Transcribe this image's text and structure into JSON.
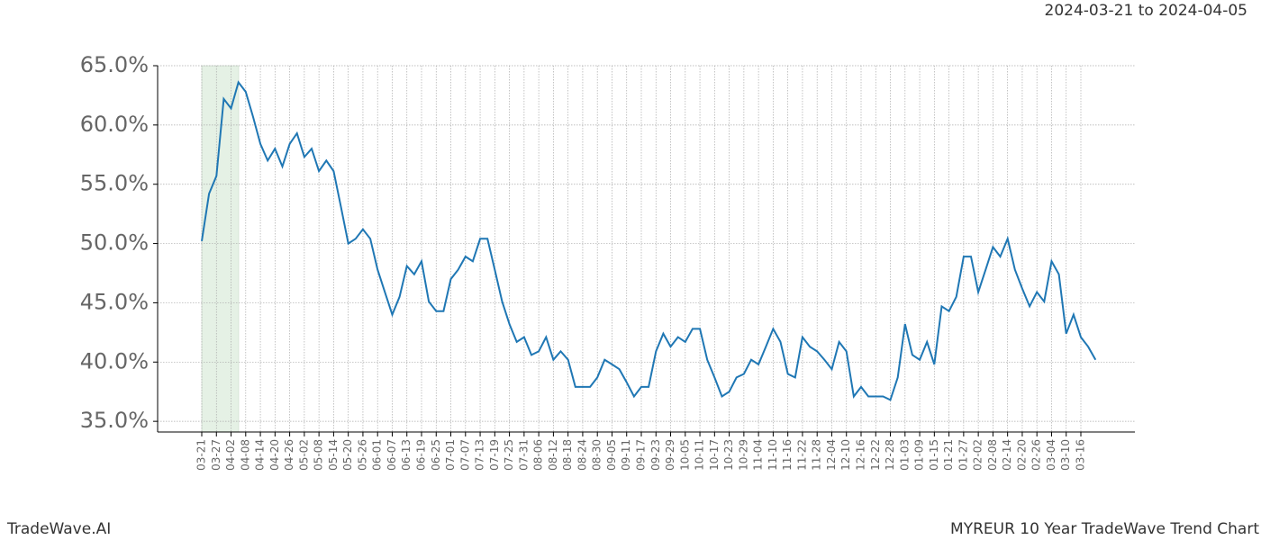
{
  "chart_data": {
    "type": "line",
    "subtitle": "2024-03-21 to 2024-04-05",
    "brand": "TradeWave.AI",
    "title": "MYREUR 10 Year TradeWave Trend Chart",
    "categories": [
      "03-21",
      null,
      "03-27",
      null,
      "04-02",
      null,
      "04-08",
      null,
      "04-14",
      null,
      "04-20",
      null,
      "04-26",
      null,
      "05-02",
      null,
      "05-08",
      null,
      "05-14",
      null,
      "05-20",
      null,
      "05-26",
      null,
      "06-01",
      null,
      "06-07",
      null,
      "06-13",
      null,
      "06-19",
      null,
      "06-25",
      null,
      "07-01",
      null,
      "07-07",
      null,
      "07-13",
      null,
      "07-19",
      null,
      "07-25",
      null,
      "07-31",
      null,
      "08-06",
      null,
      "08-12",
      null,
      "08-18",
      null,
      "08-24",
      null,
      "08-30",
      null,
      "09-05",
      null,
      "09-11",
      null,
      "09-17",
      null,
      "09-23",
      null,
      "09-29",
      null,
      "10-05",
      null,
      "10-11",
      null,
      "10-17",
      null,
      "10-23",
      null,
      "10-29",
      null,
      "11-04",
      null,
      "11-10",
      null,
      "11-16",
      null,
      "11-22",
      null,
      "11-28",
      null,
      "12-04",
      null,
      "12-10",
      null,
      "12-16",
      null,
      "12-22",
      null,
      "12-28",
      null,
      "01-03",
      null,
      "01-09",
      null,
      "01-15",
      null,
      "01-21",
      null,
      "01-27",
      null,
      "02-02",
      null,
      "02-08",
      null,
      "02-14",
      null,
      "02-20",
      null,
      "02-26",
      null,
      "03-04",
      null,
      "03-10",
      null,
      "03-16",
      null,
      null
    ],
    "values": [
      50.2,
      54.2,
      55.7,
      62.2,
      61.4,
      63.6,
      62.8,
      60.7,
      58.4,
      57.0,
      58.0,
      56.5,
      58.4,
      59.3,
      57.3,
      58.0,
      56.1,
      57.0,
      56.1,
      53.1,
      50.0,
      50.4,
      51.2,
      50.4,
      47.8,
      45.9,
      44.0,
      45.5,
      48.1,
      47.4,
      48.5,
      45.1,
      44.3,
      44.3,
      47.0,
      47.8,
      48.9,
      48.5,
      50.4,
      50.4,
      47.8,
      45.1,
      43.2,
      41.7,
      42.1,
      40.6,
      40.9,
      42.1,
      40.2,
      40.9,
      40.2,
      37.9,
      37.9,
      37.9,
      38.7,
      40.2,
      39.8,
      39.4,
      38.3,
      37.1,
      37.9,
      37.9,
      40.9,
      42.4,
      41.3,
      42.1,
      41.7,
      42.8,
      42.8,
      40.2,
      38.7,
      37.1,
      37.5,
      38.7,
      39.0,
      40.2,
      39.8,
      41.3,
      42.8,
      41.7,
      39.0,
      38.7,
      42.1,
      41.3,
      40.9,
      40.2,
      39.4,
      41.7,
      40.9,
      37.1,
      37.9,
      37.1,
      37.1,
      37.1,
      36.8,
      38.7,
      43.2,
      40.6,
      40.2,
      41.7,
      39.8,
      44.7,
      44.3,
      45.5,
      48.9,
      48.9,
      45.9,
      47.8,
      49.7,
      48.9,
      50.4,
      47.8,
      46.2,
      44.7,
      45.9,
      45.1,
      48.5,
      47.4,
      42.4,
      44.0,
      42.1,
      41.3,
      40.2
    ],
    "color": "#1f77b4",
    "ylim": [
      34.1,
      65.0
    ],
    "yticks": [
      {
        "value": 35,
        "label": "35.0%"
      },
      {
        "value": 40,
        "label": "40.0%"
      },
      {
        "value": 45,
        "label": "45.0%"
      },
      {
        "value": 50,
        "label": "50.0%"
      },
      {
        "value": 55,
        "label": "55.0%"
      },
      {
        "value": 60,
        "label": "60.0%"
      },
      {
        "value": 65,
        "label": "65.0%"
      }
    ],
    "grid": true
  }
}
